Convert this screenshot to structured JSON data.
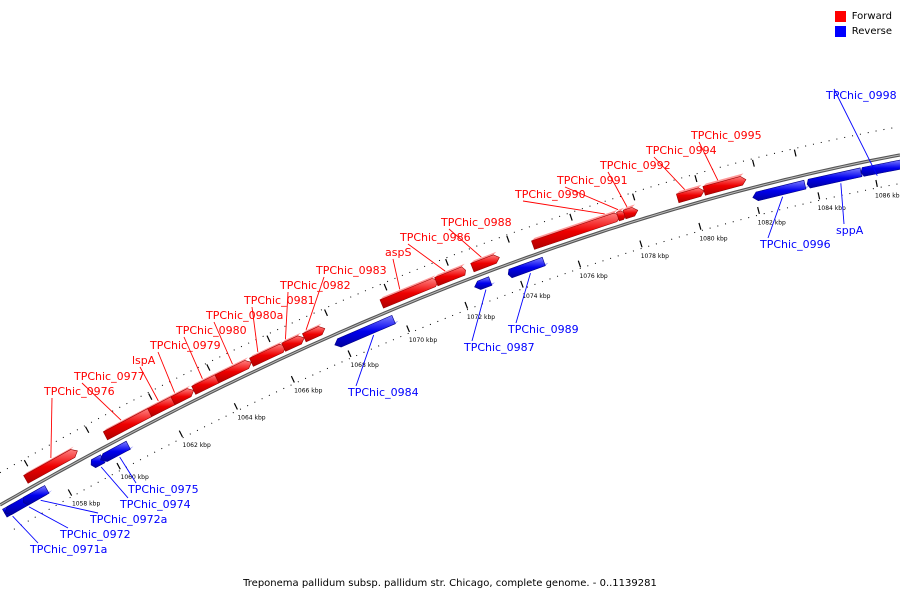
{
  "legend": {
    "items": [
      {
        "label": "Forward",
        "color": "#ff0000"
      },
      {
        "label": "Reverse",
        "color": "#0000ff"
      }
    ]
  },
  "caption": "Treponema pallidum subsp. pallidum str. Chicago, complete genome. - 0..1139281",
  "colors": {
    "forward": "#ff0000",
    "reverse": "#0000ff",
    "backbone": "#888888"
  },
  "ruler_labels": [
    "1058 kbp",
    "1060 kbp",
    "1062 kbp",
    "1064 kbp",
    "1066 kbp",
    "1068 kbp",
    "1070 kbp",
    "1072 kbp",
    "1074 kbp",
    "1076 kbp",
    "1078 kbp",
    "1080 kbp",
    "1082 kbp",
    "1084 kbp",
    "1086 kbp"
  ],
  "genes": [
    {
      "name": "TPChic_0971a",
      "strand": "reverse"
    },
    {
      "name": "TPChic_0972",
      "strand": "reverse"
    },
    {
      "name": "TPChic_0972a",
      "strand": "reverse"
    },
    {
      "name": "TPChic_0974",
      "strand": "reverse"
    },
    {
      "name": "TPChic_0975",
      "strand": "reverse"
    },
    {
      "name": "TPChic_0976",
      "strand": "forward"
    },
    {
      "name": "TPChic_0977",
      "strand": "forward"
    },
    {
      "name": "lspA",
      "strand": "forward"
    },
    {
      "name": "TPChic_0979",
      "strand": "forward"
    },
    {
      "name": "TPChic_0980",
      "strand": "forward"
    },
    {
      "name": "TPChic_0980a",
      "strand": "forward"
    },
    {
      "name": "TPChic_0981",
      "strand": "forward"
    },
    {
      "name": "TPChic_0982",
      "strand": "forward"
    },
    {
      "name": "TPChic_0983",
      "strand": "forward"
    },
    {
      "name": "TPChic_0984",
      "strand": "reverse"
    },
    {
      "name": "aspS",
      "strand": "forward"
    },
    {
      "name": "TPChic_0986",
      "strand": "forward"
    },
    {
      "name": "TPChic_0987",
      "strand": "reverse"
    },
    {
      "name": "TPChic_0988",
      "strand": "forward"
    },
    {
      "name": "TPChic_0989",
      "strand": "reverse"
    },
    {
      "name": "TPChic_0990",
      "strand": "forward"
    },
    {
      "name": "TPChic_0991",
      "strand": "forward"
    },
    {
      "name": "TPChic_0992",
      "strand": "forward"
    },
    {
      "name": "TPChic_0994",
      "strand": "forward"
    },
    {
      "name": "TPChic_0995",
      "strand": "forward"
    },
    {
      "name": "TPChic_0996",
      "strand": "reverse"
    },
    {
      "name": "sppA",
      "strand": "reverse"
    },
    {
      "name": "TPChic_0998",
      "strand": "reverse"
    }
  ]
}
